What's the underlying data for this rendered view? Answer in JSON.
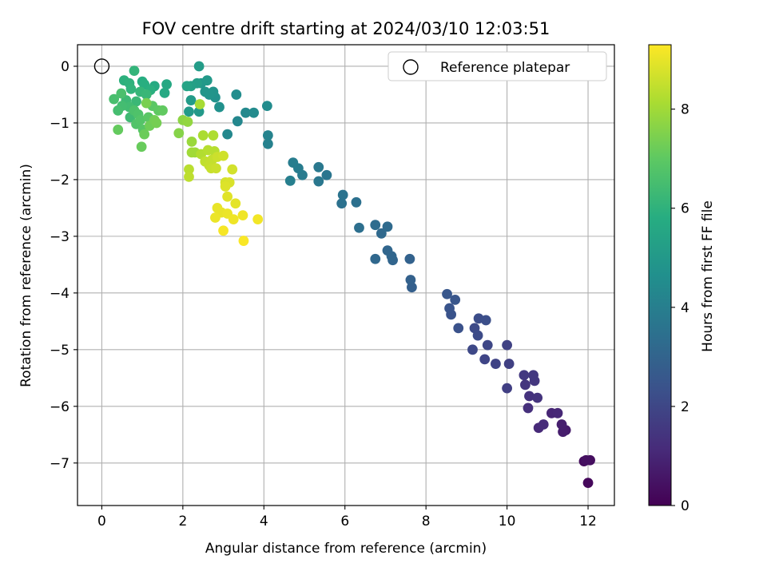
{
  "chart_data": {
    "type": "scatter",
    "title": "FOV centre drift starting at 2024/03/10 12:03:51",
    "xlabel": "Angular distance from reference (arcmin)",
    "ylabel": "Rotation from reference (arcmin)",
    "xlim": [
      -0.6,
      12.65
    ],
    "ylim": [
      -7.75,
      0.38
    ],
    "xticks": [
      0,
      2,
      4,
      6,
      8,
      10,
      12
    ],
    "yticks": [
      0,
      -1,
      -2,
      -3,
      -4,
      -5,
      -6,
      -7
    ],
    "grid": true,
    "legend": {
      "position": "top-right",
      "entries": [
        "Reference platepar"
      ]
    },
    "reference_point": {
      "x": 0,
      "y": 0
    },
    "colorbar": {
      "label": "Hours from first FF file",
      "range": [
        0,
        9.3
      ],
      "ticks": [
        0,
        2,
        4,
        6,
        8
      ],
      "colormap": "viridis"
    },
    "points": [
      {
        "x": 12.0,
        "y": -7.35,
        "c": 0.2
      },
      {
        "x": 11.9,
        "y": -6.97,
        "c": 0.3
      },
      {
        "x": 12.05,
        "y": -6.95,
        "c": 0.35
      },
      {
        "x": 11.95,
        "y": -6.95,
        "c": 0.4
      },
      {
        "x": 11.45,
        "y": -6.42,
        "c": 0.7
      },
      {
        "x": 11.38,
        "y": -6.45,
        "c": 0.75
      },
      {
        "x": 11.35,
        "y": -6.32,
        "c": 0.8
      },
      {
        "x": 11.1,
        "y": -6.12,
        "c": 1.0
      },
      {
        "x": 11.25,
        "y": -6.12,
        "c": 1.05
      },
      {
        "x": 10.78,
        "y": -6.38,
        "c": 1.1
      },
      {
        "x": 10.9,
        "y": -6.32,
        "c": 1.15
      },
      {
        "x": 10.52,
        "y": -6.03,
        "c": 1.3
      },
      {
        "x": 10.55,
        "y": -5.82,
        "c": 1.35
      },
      {
        "x": 10.75,
        "y": -5.85,
        "c": 1.4
      },
      {
        "x": 10.45,
        "y": -5.62,
        "c": 1.45
      },
      {
        "x": 10.68,
        "y": -5.55,
        "c": 1.5
      },
      {
        "x": 10.42,
        "y": -5.45,
        "c": 1.55
      },
      {
        "x": 10.65,
        "y": -5.45,
        "c": 1.55
      },
      {
        "x": 10.0,
        "y": -5.68,
        "c": 1.75
      },
      {
        "x": 10.05,
        "y": -5.25,
        "c": 1.8
      },
      {
        "x": 10.0,
        "y": -4.92,
        "c": 1.85
      },
      {
        "x": 9.72,
        "y": -5.25,
        "c": 1.9
      },
      {
        "x": 9.45,
        "y": -5.17,
        "c": 1.95
      },
      {
        "x": 9.52,
        "y": -4.92,
        "c": 2.0
      },
      {
        "x": 9.15,
        "y": -5.0,
        "c": 2.05
      },
      {
        "x": 9.2,
        "y": -4.62,
        "c": 2.1
      },
      {
        "x": 9.28,
        "y": -4.75,
        "c": 2.15
      },
      {
        "x": 9.3,
        "y": -4.45,
        "c": 2.2
      },
      {
        "x": 9.48,
        "y": -4.48,
        "c": 2.25
      },
      {
        "x": 8.8,
        "y": -4.62,
        "c": 2.35
      },
      {
        "x": 8.62,
        "y": -4.38,
        "c": 2.4
      },
      {
        "x": 8.58,
        "y": -4.27,
        "c": 2.45
      },
      {
        "x": 8.72,
        "y": -4.12,
        "c": 2.5
      },
      {
        "x": 8.52,
        "y": -4.02,
        "c": 2.55
      },
      {
        "x": 7.65,
        "y": -3.9,
        "c": 2.85
      },
      {
        "x": 7.62,
        "y": -3.77,
        "c": 2.9
      },
      {
        "x": 7.6,
        "y": -3.4,
        "c": 2.95
      },
      {
        "x": 7.18,
        "y": -3.42,
        "c": 3.05
      },
      {
        "x": 7.15,
        "y": -3.35,
        "c": 3.1
      },
      {
        "x": 7.05,
        "y": -3.25,
        "c": 3.1
      },
      {
        "x": 6.75,
        "y": -3.4,
        "c": 3.15
      },
      {
        "x": 6.9,
        "y": -2.95,
        "c": 3.2
      },
      {
        "x": 7.05,
        "y": -2.83,
        "c": 3.25
      },
      {
        "x": 6.75,
        "y": -2.8,
        "c": 3.3
      },
      {
        "x": 6.35,
        "y": -2.85,
        "c": 3.4
      },
      {
        "x": 6.28,
        "y": -2.4,
        "c": 3.45
      },
      {
        "x": 5.92,
        "y": -2.42,
        "c": 3.5
      },
      {
        "x": 5.95,
        "y": -2.27,
        "c": 3.55
      },
      {
        "x": 5.55,
        "y": -1.92,
        "c": 3.65
      },
      {
        "x": 5.35,
        "y": -2.03,
        "c": 3.7
      },
      {
        "x": 5.35,
        "y": -1.78,
        "c": 3.75
      },
      {
        "x": 4.95,
        "y": -1.92,
        "c": 3.85
      },
      {
        "x": 4.85,
        "y": -1.8,
        "c": 3.9
      },
      {
        "x": 4.72,
        "y": -1.7,
        "c": 3.95
      },
      {
        "x": 4.65,
        "y": -2.02,
        "c": 4.0
      },
      {
        "x": 4.1,
        "y": -1.37,
        "c": 4.1
      },
      {
        "x": 4.1,
        "y": -1.22,
        "c": 4.15
      },
      {
        "x": 3.35,
        "y": -0.97,
        "c": 4.3
      },
      {
        "x": 3.1,
        "y": -1.2,
        "c": 4.35
      },
      {
        "x": 3.55,
        "y": -0.82,
        "c": 4.4
      },
      {
        "x": 3.75,
        "y": -0.82,
        "c": 4.45
      },
      {
        "x": 4.08,
        "y": -0.7,
        "c": 4.5
      },
      {
        "x": 3.32,
        "y": -0.5,
        "c": 4.55
      },
      {
        "x": 2.9,
        "y": -0.72,
        "c": 4.7
      },
      {
        "x": 2.8,
        "y": -0.55,
        "c": 4.75
      },
      {
        "x": 2.75,
        "y": -0.45,
        "c": 4.8
      },
      {
        "x": 2.65,
        "y": -0.5,
        "c": 4.85
      },
      {
        "x": 2.55,
        "y": -0.45,
        "c": 4.9
      },
      {
        "x": 2.45,
        "y": -0.3,
        "c": 4.95
      },
      {
        "x": 2.6,
        "y": -0.25,
        "c": 5.0
      },
      {
        "x": 2.4,
        "y": -0.8,
        "c": 5.0
      },
      {
        "x": 2.15,
        "y": -0.8,
        "c": 5.05
      },
      {
        "x": 2.2,
        "y": -0.6,
        "c": 5.1
      },
      {
        "x": 2.4,
        "y": 0.0,
        "c": 5.15
      },
      {
        "x": 2.35,
        "y": -0.3,
        "c": 5.2
      },
      {
        "x": 2.2,
        "y": -0.35,
        "c": 5.3
      },
      {
        "x": 2.1,
        "y": -0.35,
        "c": 5.4
      },
      {
        "x": 1.6,
        "y": -0.32,
        "c": 5.6
      },
      {
        "x": 1.55,
        "y": -0.47,
        "c": 5.65
      },
      {
        "x": 1.3,
        "y": -0.35,
        "c": 5.7
      },
      {
        "x": 1.0,
        "y": -0.27,
        "c": 5.8
      },
      {
        "x": 1.05,
        "y": -0.32,
        "c": 5.85
      },
      {
        "x": 1.2,
        "y": -0.42,
        "c": 5.9
      },
      {
        "x": 0.55,
        "y": -0.25,
        "c": 5.95
      },
      {
        "x": 0.68,
        "y": -0.3,
        "c": 6.0
      },
      {
        "x": 0.72,
        "y": -0.4,
        "c": 6.05
      },
      {
        "x": 0.8,
        "y": -0.08,
        "c": 6.1
      },
      {
        "x": 0.95,
        "y": -0.45,
        "c": 6.15
      },
      {
        "x": 1.1,
        "y": -0.5,
        "c": 6.2
      },
      {
        "x": 0.85,
        "y": -0.62,
        "c": 6.25
      },
      {
        "x": 0.6,
        "y": -0.6,
        "c": 6.3
      },
      {
        "x": 0.7,
        "y": -0.9,
        "c": 6.35
      },
      {
        "x": 0.68,
        "y": -0.72,
        "c": 6.4
      },
      {
        "x": 0.5,
        "y": -0.7,
        "c": 6.45
      },
      {
        "x": 0.4,
        "y": -0.78,
        "c": 6.5
      },
      {
        "x": 0.3,
        "y": -0.58,
        "c": 6.55
      },
      {
        "x": 0.48,
        "y": -0.48,
        "c": 6.6
      },
      {
        "x": 0.8,
        "y": -0.78,
        "c": 6.65
      },
      {
        "x": 0.9,
        "y": -0.85,
        "c": 6.7
      },
      {
        "x": 0.85,
        "y": -1.02,
        "c": 6.75
      },
      {
        "x": 0.95,
        "y": -0.95,
        "c": 6.8
      },
      {
        "x": 1.02,
        "y": -1.12,
        "c": 6.85
      },
      {
        "x": 1.15,
        "y": -0.9,
        "c": 6.9
      },
      {
        "x": 1.25,
        "y": -0.7,
        "c": 6.95
      },
      {
        "x": 1.4,
        "y": -0.78,
        "c": 7.0
      },
      {
        "x": 1.5,
        "y": -0.78,
        "c": 7.05
      },
      {
        "x": 0.4,
        "y": -1.12,
        "c": 7.1
      },
      {
        "x": 0.98,
        "y": -1.42,
        "c": 7.15
      },
      {
        "x": 1.05,
        "y": -1.2,
        "c": 7.2
      },
      {
        "x": 1.18,
        "y": -1.05,
        "c": 7.25
      },
      {
        "x": 1.3,
        "y": -0.95,
        "c": 7.3
      },
      {
        "x": 1.35,
        "y": -1.0,
        "c": 7.35
      },
      {
        "x": 1.1,
        "y": -0.65,
        "c": 7.4
      },
      {
        "x": 1.9,
        "y": -1.18,
        "c": 7.6
      },
      {
        "x": 2.0,
        "y": -0.95,
        "c": 7.7
      },
      {
        "x": 2.12,
        "y": -0.98,
        "c": 7.8
      },
      {
        "x": 2.22,
        "y": -1.33,
        "c": 7.9
      },
      {
        "x": 2.3,
        "y": -1.52,
        "c": 7.95
      },
      {
        "x": 2.22,
        "y": -1.52,
        "c": 8.0
      },
      {
        "x": 2.42,
        "y": -0.67,
        "c": 8.1
      },
      {
        "x": 2.5,
        "y": -1.22,
        "c": 8.15
      },
      {
        "x": 2.75,
        "y": -1.22,
        "c": 8.2
      },
      {
        "x": 2.45,
        "y": -1.55,
        "c": 8.25
      },
      {
        "x": 2.62,
        "y": -1.48,
        "c": 8.3
      },
      {
        "x": 2.78,
        "y": -1.5,
        "c": 8.3
      },
      {
        "x": 2.15,
        "y": -1.82,
        "c": 8.35
      },
      {
        "x": 2.15,
        "y": -1.95,
        "c": 8.4
      },
      {
        "x": 2.55,
        "y": -1.68,
        "c": 8.45
      },
      {
        "x": 2.65,
        "y": -1.75,
        "c": 8.5
      },
      {
        "x": 2.72,
        "y": -1.65,
        "c": 8.5
      },
      {
        "x": 2.7,
        "y": -1.8,
        "c": 8.55
      },
      {
        "x": 2.82,
        "y": -1.8,
        "c": 8.6
      },
      {
        "x": 2.85,
        "y": -1.6,
        "c": 8.6
      },
      {
        "x": 3.0,
        "y": -1.58,
        "c": 8.65
      },
      {
        "x": 3.22,
        "y": -1.82,
        "c": 8.7
      },
      {
        "x": 3.05,
        "y": -2.05,
        "c": 8.75
      },
      {
        "x": 3.15,
        "y": -2.05,
        "c": 8.8
      },
      {
        "x": 3.05,
        "y": -2.12,
        "c": 8.85
      },
      {
        "x": 3.1,
        "y": -2.3,
        "c": 8.9
      },
      {
        "x": 3.3,
        "y": -2.42,
        "c": 8.95
      },
      {
        "x": 2.85,
        "y": -2.5,
        "c": 9.0
      },
      {
        "x": 2.95,
        "y": -2.58,
        "c": 9.0
      },
      {
        "x": 2.8,
        "y": -2.67,
        "c": 9.05
      },
      {
        "x": 3.1,
        "y": -2.6,
        "c": 9.05
      },
      {
        "x": 3.25,
        "y": -2.7,
        "c": 9.1
      },
      {
        "x": 3.48,
        "y": -2.63,
        "c": 9.1
      },
      {
        "x": 3.85,
        "y": -2.7,
        "c": 9.15
      },
      {
        "x": 3.0,
        "y": -2.9,
        "c": 9.2
      },
      {
        "x": 3.5,
        "y": -3.08,
        "c": 9.25
      }
    ]
  }
}
